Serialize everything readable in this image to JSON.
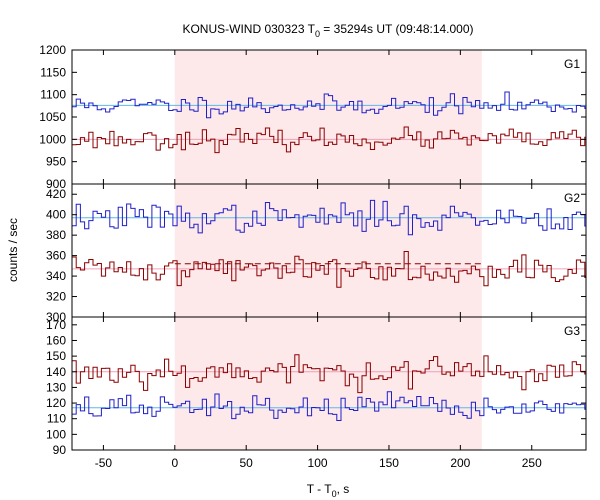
{
  "chart_data": {
    "type": "line",
    "title": {
      "pre": "KONUS-WIND 030323 T",
      "sub": "0",
      "post": " = 35294s UT (09:48:14.000)"
    },
    "xlabel": {
      "pre": "T - T",
      "sub": "0",
      "post": ", s"
    },
    "ylabel": "counts / sec",
    "xlim": [
      -72,
      288
    ],
    "xticks": [
      -50,
      0,
      50,
      100,
      150,
      200,
      250
    ],
    "shaded_interval": [
      0,
      215
    ],
    "colors": {
      "blue": "#2020c8",
      "red": "#8b0000",
      "cyan_fit": "#5fb8e8",
      "pink_fit": "#f0a0b8",
      "shade": "#fde8ea"
    },
    "panels": [
      {
        "label": "G1",
        "ylim": [
          900,
          1200
        ],
        "yticks": [
          900,
          950,
          1000,
          1050,
          1100,
          1150,
          1200
        ],
        "bin": 2.944,
        "series": [
          {
            "color": "blue",
            "fit": 1076,
            "noise": 11,
            "seed": 11
          },
          {
            "color": "red",
            "fit": 1000,
            "noise": 11,
            "seed": 23
          }
        ]
      },
      {
        "label": "G2",
        "ylim": [
          300,
          430
        ],
        "yticks": [
          300,
          320,
          340,
          360,
          380,
          400,
          420
        ],
        "bin": 2.944,
        "series": [
          {
            "color": "blue",
            "fit": 397,
            "noise": 7,
            "seed": 37
          },
          {
            "color": "red",
            "fit": 347,
            "noise": 7,
            "seed": 41,
            "dashed_level": 352
          }
        ]
      },
      {
        "label": "G3",
        "ylim": [
          90,
          175
        ],
        "yticks": [
          90,
          100,
          110,
          120,
          130,
          140,
          150,
          160,
          170
        ],
        "bin": 2.944,
        "series": [
          {
            "color": "red",
            "fit": 140,
            "noise": 5,
            "seed": 53
          },
          {
            "color": "blue",
            "fit": 117,
            "noise": 4,
            "seed": 67
          }
        ]
      }
    ]
  }
}
